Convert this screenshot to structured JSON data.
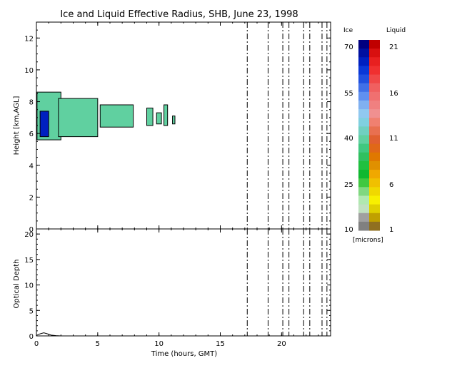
{
  "title": "Ice and Liquid Effective Radius, SHB, June 23, 1998",
  "chart_data": [
    {
      "type": "heatmap",
      "panel": "effective-radius",
      "ylabel": "Height [km,AGL]",
      "xlim": [
        0,
        24
      ],
      "ylim": [
        0,
        13
      ],
      "x_ticks": [
        "0",
        "5",
        "10",
        "15",
        "20"
      ],
      "y_ticks": [
        "0",
        "2",
        "4",
        "6",
        "8",
        "10",
        "12"
      ],
      "dashed_x": [
        17.2,
        18.9,
        20.1,
        20.6,
        21.8,
        22.3,
        23.3,
        23.7
      ],
      "cloud_regions": [
        {
          "t": [
            0.05,
            2.0
          ],
          "h": [
            5.6,
            8.6
          ],
          "radius_um": 40
        },
        {
          "t": [
            0.3,
            1.0
          ],
          "h": [
            5.8,
            7.4
          ],
          "radius_um": 65
        },
        {
          "t": [
            1.8,
            5.0
          ],
          "h": [
            5.8,
            8.2
          ],
          "radius_um": 40
        },
        {
          "t": [
            5.2,
            7.9
          ],
          "h": [
            6.4,
            7.8
          ],
          "radius_um": 40
        },
        {
          "t": [
            9.0,
            9.5
          ],
          "h": [
            6.5,
            7.6
          ],
          "radius_um": 40
        },
        {
          "t": [
            9.8,
            10.2
          ],
          "h": [
            6.6,
            7.3
          ],
          "radius_um": 40
        },
        {
          "t": [
            10.4,
            10.7
          ],
          "h": [
            6.5,
            7.8
          ],
          "radius_um": 40
        },
        {
          "t": [
            11.1,
            11.3
          ],
          "h": [
            6.6,
            7.1
          ],
          "radius_um": 40
        }
      ]
    },
    {
      "type": "line",
      "panel": "optical-depth",
      "xlabel": "Time (hours, GMT)",
      "ylabel": "Optical Depth",
      "xlim": [
        0,
        24
      ],
      "ylim": [
        0,
        21
      ],
      "x_ticks": [
        "0",
        "5",
        "10",
        "15",
        "20"
      ],
      "y_ticks": [
        "0",
        "5",
        "10",
        "15",
        "20"
      ],
      "dashed_x": [
        17.2,
        18.9,
        20.1,
        20.6,
        21.8,
        22.3,
        23.3,
        23.7
      ],
      "x": [
        0,
        0.3,
        0.6,
        0.9,
        1.2,
        1.6,
        2.0,
        24
      ],
      "y": [
        0.1,
        0.4,
        0.6,
        0.4,
        0.15,
        0.05,
        0,
        0
      ]
    }
  ],
  "colorbar": {
    "ice_label": "Ice",
    "liquid_label": "Liquid",
    "units_label": "[microns]",
    "ice_ticks": [
      "70",
      "55",
      "40",
      "25",
      "10"
    ],
    "liquid_ticks": [
      "21",
      "16",
      "11",
      "6",
      "1"
    ],
    "ice_colors": [
      "#000080",
      "#0010a0",
      "#0020c0",
      "#0a38d8",
      "#2050e0",
      "#4070e8",
      "#6090f0",
      "#80b0f0",
      "#90c8f0",
      "#80d0e0",
      "#70d0c0",
      "#60d0a0",
      "#40c880",
      "#30c060",
      "#20c040",
      "#10b830",
      "#40c840",
      "#80d880",
      "#b0e8b0",
      "#c0e0c0",
      "#a0a0a0",
      "#808080"
    ],
    "liquid_colors": [
      "#c00000",
      "#d81010",
      "#e82020",
      "#f03030",
      "#f04848",
      "#f06060",
      "#f07070",
      "#f08080",
      "#f09090",
      "#f08070",
      "#e87050",
      "#e06030",
      "#e06818",
      "#e07800",
      "#e09000",
      "#f0a800",
      "#f0c000",
      "#f0d800",
      "#f8f000",
      "#e0d000",
      "#c0a000",
      "#907020"
    ]
  }
}
